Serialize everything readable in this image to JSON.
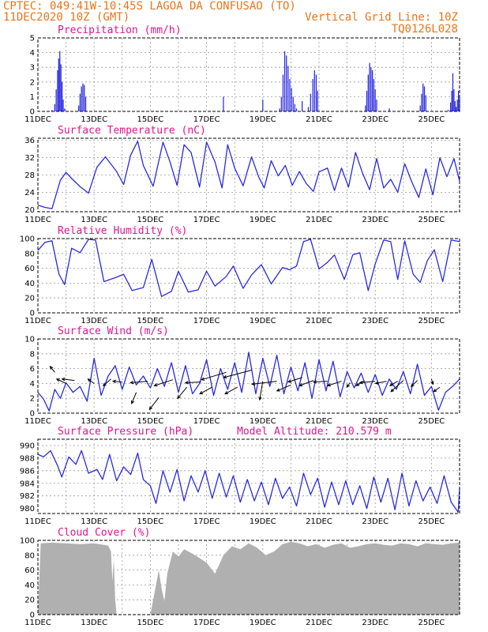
{
  "header": {
    "line1": "CPTEC:   049:41W-10:45S  LAGOA DA CONFUSAO (TO)",
    "line2": "11DEC2020 10Z (GMT)",
    "vgrid": "Vertical Grid Line: 10Z",
    "code": "TQ0126L028"
  },
  "colors": {
    "header": "#e8751a",
    "panel_title": "#e0158f",
    "series": "#2a2ae0",
    "cloud_fill": "#b0b0b0",
    "vector": "#000000"
  },
  "chart_data": [
    {
      "id": "precipitation",
      "type": "bar",
      "title": "Precipitation (mm/h)",
      "ylim": [
        0,
        5
      ],
      "yticks": [
        0,
        1,
        2,
        3,
        4,
        5
      ],
      "xlabels": [
        "11DEC",
        "13DEC",
        "15DEC",
        "17DEC",
        "19DEC",
        "21DEC",
        "23DEC",
        "25DEC"
      ],
      "bars": [
        [
          0.5,
          0.1
        ],
        [
          0.6,
          0.5
        ],
        [
          0.65,
          1.5
        ],
        [
          0.7,
          2.8
        ],
        [
          0.74,
          3.6
        ],
        [
          0.78,
          4.1
        ],
        [
          0.82,
          3.2
        ],
        [
          0.86,
          2.0
        ],
        [
          0.9,
          0.8
        ],
        [
          0.95,
          0.2
        ],
        [
          1.45,
          0.4
        ],
        [
          1.5,
          1.2
        ],
        [
          1.55,
          1.7
        ],
        [
          1.6,
          1.9
        ],
        [
          1.65,
          1.8
        ],
        [
          1.7,
          1.0
        ],
        [
          6.6,
          1.0
        ],
        [
          8.0,
          0.8
        ],
        [
          8.6,
          0.2
        ],
        [
          8.66,
          1.0
        ],
        [
          8.72,
          2.5
        ],
        [
          8.78,
          4.1
        ],
        [
          8.84,
          3.8
        ],
        [
          8.9,
          3.1
        ],
        [
          8.96,
          2.2
        ],
        [
          9.02,
          1.6
        ],
        [
          9.08,
          1.0
        ],
        [
          9.14,
          0.5
        ],
        [
          9.2,
          0.2
        ],
        [
          9.4,
          0.7
        ],
        [
          9.62,
          0.3
        ],
        [
          9.7,
          1.2
        ],
        [
          9.78,
          2.2
        ],
        [
          9.84,
          2.8
        ],
        [
          9.9,
          2.5
        ],
        [
          9.95,
          1.4
        ],
        [
          11.65,
          0.4
        ],
        [
          11.7,
          1.4
        ],
        [
          11.75,
          2.5
        ],
        [
          11.8,
          3.3
        ],
        [
          11.85,
          3.0
        ],
        [
          11.9,
          2.8
        ],
        [
          11.95,
          2.2
        ],
        [
          12.0,
          1.5
        ],
        [
          12.05,
          0.8
        ],
        [
          12.5,
          0.2
        ],
        [
          13.6,
          0.4
        ],
        [
          13.65,
          1.2
        ],
        [
          13.7,
          1.9
        ],
        [
          13.75,
          1.7
        ],
        [
          13.8,
          1.1
        ],
        [
          14.6,
          0.1
        ],
        [
          14.68,
          0.6
        ],
        [
          14.72,
          1.4
        ],
        [
          14.76,
          2.6
        ],
        [
          14.8,
          1.5
        ],
        [
          14.84,
          0.7
        ],
        [
          14.88,
          0.3
        ],
        [
          14.92,
          0.8
        ],
        [
          14.96,
          1.4
        ],
        [
          15.0,
          1.0
        ]
      ]
    },
    {
      "id": "temperature",
      "type": "line",
      "title": "Surface Temperature (nC)",
      "ylim": [
        19.5,
        36.5
      ],
      "yticks": [
        20,
        24,
        28,
        32,
        36
      ],
      "xlabels": [
        "11DEC",
        "13DEC",
        "15DEC",
        "17DEC",
        "19DEC",
        "21DEC",
        "23DEC",
        "25DEC"
      ],
      "x": [
        0,
        0.25,
        0.5,
        0.8,
        1.0,
        1.2,
        1.5,
        1.8,
        2.1,
        2.4,
        2.8,
        3.05,
        3.3,
        3.55,
        3.75,
        4.1,
        4.45,
        4.7,
        4.95,
        5.2,
        5.45,
        5.75,
        6.0,
        6.3,
        6.55,
        6.75,
        7.0,
        7.3,
        7.6,
        7.85,
        8.05,
        8.3,
        8.55,
        8.8,
        9.05,
        9.3,
        9.55,
        9.8,
        10.0,
        10.3,
        10.55,
        10.8,
        11.05,
        11.3,
        11.55,
        11.8,
        12.05,
        12.3,
        12.55,
        12.8,
        13.05,
        13.3,
        13.55,
        13.8,
        14.05,
        14.3,
        14.55,
        14.8,
        15.0
      ],
      "y": [
        21,
        20.5,
        20.2,
        26.8,
        28.6,
        27.2,
        25.3,
        23.8,
        29.8,
        32.2,
        28.8,
        25.8,
        32.6,
        35.8,
        30.2,
        25.4,
        35.6,
        31.0,
        25.6,
        35.0,
        33.2,
        25.2,
        35.6,
        31.0,
        25.0,
        35.0,
        29.6,
        25.5,
        32.2,
        27.6,
        25.0,
        31.3,
        27.8,
        30.2,
        25.6,
        28.8,
        26.0,
        24.2,
        28.7,
        29.6,
        24.4,
        29.6,
        25.2,
        33.2,
        28.4,
        24.6,
        31.8,
        25.0,
        27.0,
        24.0,
        30.6,
        26.4,
        22.8,
        29.4,
        23.4,
        32.0,
        27.6,
        31.8,
        26.6
      ]
    },
    {
      "id": "humidity",
      "type": "line",
      "title": "Relative Humidity (%)",
      "ylim": [
        0,
        100
      ],
      "yticks": [
        0,
        20,
        40,
        60,
        80,
        100
      ],
      "xlabels": [
        "11DEC",
        "13DEC",
        "15DEC",
        "17DEC",
        "19DEC",
        "21DEC",
        "23DEC",
        "25DEC"
      ],
      "x": [
        0,
        0.25,
        0.5,
        0.75,
        0.95,
        1.2,
        1.5,
        1.8,
        2.05,
        2.35,
        2.8,
        3.05,
        3.35,
        3.75,
        4.05,
        4.4,
        4.75,
        5.0,
        5.35,
        5.7,
        6.0,
        6.3,
        6.7,
        6.95,
        7.3,
        7.6,
        7.95,
        8.3,
        8.7,
        8.95,
        9.2,
        9.45,
        9.7,
        10.0,
        10.3,
        10.55,
        10.9,
        11.2,
        11.45,
        11.75,
        12.0,
        12.3,
        12.55,
        12.8,
        13.05,
        13.35,
        13.6,
        13.85,
        14.1,
        14.4,
        14.7,
        15.0
      ],
      "y": [
        84,
        95,
        97,
        52,
        38,
        87,
        81,
        99,
        98,
        42,
        48,
        52,
        30,
        34,
        72,
        22,
        29,
        56,
        28,
        31,
        56,
        36,
        49,
        63,
        33,
        51,
        65,
        39,
        61,
        58,
        63,
        96,
        99,
        59,
        68,
        78,
        45,
        78,
        81,
        30,
        66,
        98,
        96,
        45,
        97,
        52,
        41,
        70,
        85,
        42,
        98,
        96
      ]
    },
    {
      "id": "wind",
      "type": "line",
      "title": "Surface Wind (m/s)",
      "ylim": [
        0,
        10
      ],
      "yticks": [
        0,
        2,
        4,
        6,
        8,
        10
      ],
      "xlabels": [
        "11DEC",
        "13DEC",
        "15DEC",
        "17DEC",
        "19DEC",
        "21DEC",
        "23DEC",
        "25DEC"
      ],
      "x": [
        0,
        0.2,
        0.4,
        0.6,
        0.8,
        1.0,
        1.25,
        1.5,
        1.75,
        2.0,
        2.25,
        2.5,
        2.75,
        3.0,
        3.25,
        3.5,
        3.75,
        4.0,
        4.25,
        4.5,
        4.75,
        5.0,
        5.25,
        5.5,
        5.75,
        6.0,
        6.25,
        6.5,
        6.75,
        7.0,
        7.25,
        7.5,
        7.75,
        8.0,
        8.25,
        8.5,
        8.75,
        9.0,
        9.25,
        9.5,
        9.75,
        10.0,
        10.25,
        10.5,
        10.75,
        11.0,
        11.25,
        11.5,
        11.75,
        12.0,
        12.25,
        12.5,
        12.75,
        13.0,
        13.25,
        13.5,
        13.75,
        14.0,
        14.25,
        14.5,
        14.75,
        15.0
      ],
      "y": [
        2.8,
        1.9,
        0.3,
        3.2,
        2.0,
        4.1,
        2.8,
        3.6,
        1.6,
        7.4,
        2.4,
        5.0,
        6.4,
        3.2,
        6.2,
        3.8,
        5.0,
        3.4,
        6.0,
        3.6,
        6.8,
        2.8,
        6.4,
        2.6,
        4.0,
        7.2,
        2.4,
        6.0,
        3.2,
        6.8,
        2.8,
        8.2,
        2.6,
        7.4,
        3.6,
        7.8,
        2.6,
        6.2,
        3.0,
        6.8,
        2.0,
        7.2,
        3.0,
        7.0,
        2.2,
        5.6,
        3.4,
        5.4,
        2.8,
        5.2,
        2.4,
        4.6,
        3.2,
        5.6,
        2.6,
        6.6,
        2.4,
        3.6,
        0.4,
        2.8,
        3.6,
        4.6
      ],
      "vectors": [
        [
          0.6,
          5.5,
          -0.3,
          0.8
        ],
        [
          1.0,
          4.0,
          -0.6,
          0.6
        ],
        [
          1.3,
          4.4,
          -0.8,
          0.2
        ],
        [
          2.0,
          4.0,
          -0.4,
          0.6
        ],
        [
          2.6,
          4.6,
          -0.5,
          -0.9
        ],
        [
          3.0,
          4.2,
          -0.6,
          0.1
        ],
        [
          3.5,
          2.8,
          -0.3,
          -1.5
        ],
        [
          3.9,
          4.3,
          -1.1,
          -0.2
        ],
        [
          4.3,
          2.1,
          -0.6,
          -1.6
        ],
        [
          4.8,
          4.5,
          -1.2,
          -0.8
        ],
        [
          5.3,
          3.5,
          -0.6,
          -1.5
        ],
        [
          5.8,
          4.2,
          -1.0,
          -0.1
        ],
        [
          6.2,
          3.5,
          -0.8,
          -0.9
        ],
        [
          6.7,
          5.5,
          -1.6,
          -1.0
        ],
        [
          7.1,
          3.5,
          -0.8,
          -0.9
        ],
        [
          7.6,
          5.8,
          -1.8,
          -1.0
        ],
        [
          8.0,
          4.3,
          -0.2,
          -2.5
        ],
        [
          8.5,
          4.3,
          -1.6,
          -0.4
        ],
        [
          9.0,
          3.8,
          -0.9,
          -0.8
        ],
        [
          9.4,
          4.8,
          -0.9,
          -0.6
        ],
        [
          9.8,
          4.4,
          -0.9,
          -0.7
        ],
        [
          10.3,
          4.3,
          -0.9,
          -0.1
        ],
        [
          10.8,
          4.3,
          -0.9,
          -0.6
        ],
        [
          11.1,
          4.1,
          -0.2,
          -0.6
        ],
        [
          11.6,
          4.3,
          -0.5,
          -0.6
        ],
        [
          12.0,
          4.3,
          -1.0,
          -0.2
        ],
        [
          12.4,
          4.3,
          -0.7,
          -0.3
        ],
        [
          12.8,
          4.3,
          -0.5,
          -0.6
        ],
        [
          13.0,
          4.4,
          -0.8,
          -1.5
        ],
        [
          13.5,
          4.4,
          -0.4,
          -0.8
        ],
        [
          14.0,
          4.6,
          0.1,
          -0.7
        ],
        [
          14.3,
          3.5,
          -0.4,
          -0.6
        ]
      ]
    },
    {
      "id": "pressure",
      "type": "line",
      "title": "Surface Pressure (hPa)",
      "annotation": "Model Altitude: 210.579 m",
      "ylim": [
        979.2,
        991
      ],
      "yticks": [
        980,
        982,
        984,
        986,
        988,
        990
      ],
      "xlabels": [
        "11DEC",
        "13DEC",
        "15DEC",
        "17DEC",
        "19DEC",
        "21DEC",
        "23DEC",
        "25DEC"
      ],
      "x": [
        0,
        0.2,
        0.45,
        0.7,
        0.85,
        1.1,
        1.35,
        1.55,
        1.8,
        2.1,
        2.3,
        2.55,
        2.8,
        3.05,
        3.3,
        3.55,
        3.75,
        4.0,
        4.2,
        4.45,
        4.7,
        4.95,
        5.2,
        5.45,
        5.7,
        5.95,
        6.2,
        6.45,
        6.7,
        6.95,
        7.2,
        7.45,
        7.7,
        7.95,
        8.2,
        8.45,
        8.7,
        8.95,
        9.2,
        9.45,
        9.7,
        9.95,
        10.2,
        10.45,
        10.7,
        10.95,
        11.2,
        11.45,
        11.7,
        11.95,
        12.2,
        12.45,
        12.7,
        12.95,
        13.2,
        13.45,
        13.7,
        13.95,
        14.2,
        14.45,
        14.7,
        14.95,
        15.0
      ],
      "y": [
        988.6,
        988.2,
        989.2,
        986.8,
        985.0,
        988.2,
        987.0,
        989.2,
        985.6,
        986.2,
        984.6,
        988.6,
        984.4,
        986.6,
        985.4,
        988.8,
        984.6,
        983.6,
        980.8,
        986.0,
        982.6,
        986.2,
        981.2,
        985.2,
        982.6,
        986.0,
        981.6,
        985.6,
        981.8,
        985.2,
        981.0,
        984.6,
        981.2,
        984.2,
        980.6,
        984.8,
        981.6,
        983.4,
        980.4,
        985.6,
        982.2,
        984.8,
        980.2,
        984.2,
        980.6,
        984.4,
        980.6,
        983.6,
        980.0,
        985.0,
        981.0,
        984.8,
        979.8,
        985.6,
        980.4,
        984.4,
        981.2,
        983.4,
        980.8,
        985.2,
        981.0,
        979.4,
        983.2
      ]
    },
    {
      "id": "cloud",
      "type": "area",
      "title": "Cloud Cover (%)",
      "ylim": [
        0,
        100
      ],
      "yticks": [
        0,
        20,
        40,
        60,
        80,
        100
      ],
      "xlabels": [
        "11DEC",
        "13DEC",
        "15DEC",
        "17DEC",
        "19DEC",
        "21DEC",
        "23DEC",
        "25DEC"
      ],
      "x": [
        0,
        0.1,
        0.5,
        1.0,
        1.5,
        2.0,
        2.5,
        2.6,
        2.65,
        2.7,
        2.75,
        2.8,
        3.5,
        4.0,
        4.05,
        4.2,
        4.3,
        4.4,
        4.5,
        4.6,
        4.7,
        4.8,
        5.0,
        5.2,
        5.5,
        5.8,
        6.0,
        6.3,
        6.6,
        6.9,
        7.2,
        7.5,
        7.8,
        8.1,
        8.4,
        8.7,
        9.0,
        9.3,
        9.6,
        9.9,
        10.2,
        10.5,
        10.8,
        11.1,
        11.4,
        11.7,
        12.0,
        12.3,
        12.6,
        12.9,
        13.2,
        13.5,
        13.8,
        14.1,
        14.4,
        14.7,
        15.0
      ],
      "y": [
        0,
        96,
        97,
        96,
        95,
        96,
        93,
        85,
        45,
        75,
        20,
        0,
        0,
        0,
        10,
        40,
        60,
        35,
        18,
        55,
        70,
        85,
        78,
        88,
        82,
        75,
        70,
        55,
        80,
        92,
        88,
        96,
        90,
        80,
        85,
        95,
        98,
        96,
        92,
        95,
        90,
        94,
        96,
        90,
        92,
        95,
        96,
        94,
        93,
        96,
        95,
        92,
        96,
        95,
        94,
        96,
        97
      ]
    }
  ]
}
